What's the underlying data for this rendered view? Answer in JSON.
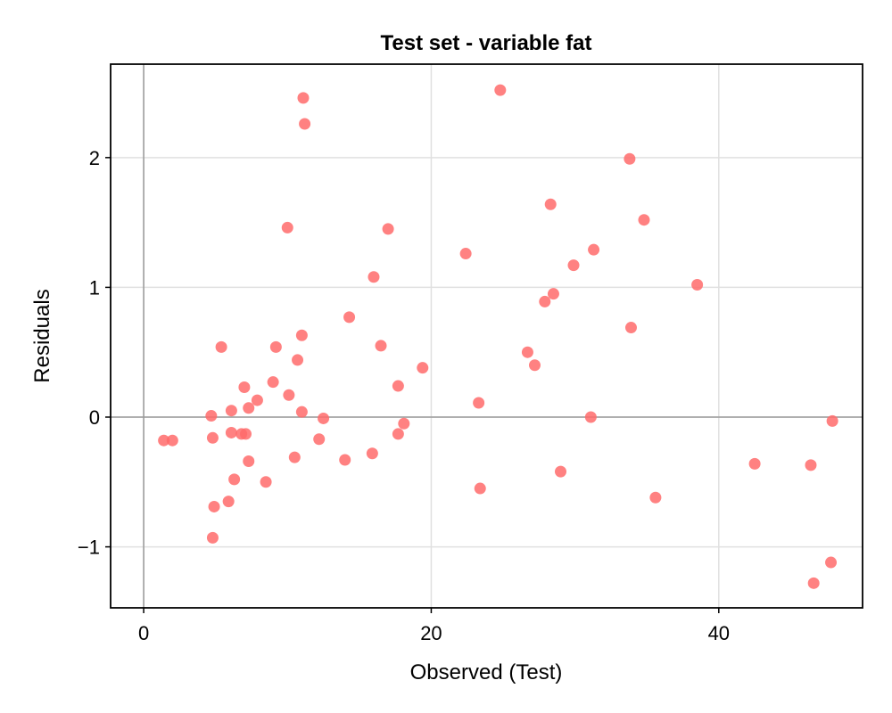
{
  "chart_data": {
    "type": "scatter",
    "title": "Test set - variable fat",
    "xlabel": "Observed (Test)",
    "ylabel": "Residuals",
    "xlim": [
      -2.3,
      50
    ],
    "ylim": [
      -1.47,
      2.72
    ],
    "xticks": [
      0,
      20,
      40
    ],
    "yticks": [
      -1,
      0,
      1,
      2
    ],
    "xtick_labels": [
      "0",
      "20",
      "40"
    ],
    "ytick_labels": [
      "−1",
      "0",
      "1",
      "2"
    ],
    "grid": true,
    "reference_lines": {
      "x": 0,
      "y": 0
    },
    "marker_color": "#ff6b6b",
    "points": [
      {
        "x": 1.4,
        "y": -0.18
      },
      {
        "x": 2.0,
        "y": -0.18
      },
      {
        "x": 4.7,
        "y": 0.01
      },
      {
        "x": 4.8,
        "y": -0.16
      },
      {
        "x": 4.9,
        "y": -0.69
      },
      {
        "x": 4.8,
        "y": -0.93
      },
      {
        "x": 5.4,
        "y": 0.54
      },
      {
        "x": 6.1,
        "y": 0.05
      },
      {
        "x": 6.1,
        "y": -0.12
      },
      {
        "x": 6.3,
        "y": -0.48
      },
      {
        "x": 5.9,
        "y": -0.65
      },
      {
        "x": 6.8,
        "y": -0.13
      },
      {
        "x": 7.0,
        "y": 0.23
      },
      {
        "x": 7.1,
        "y": -0.13
      },
      {
        "x": 7.3,
        "y": 0.07
      },
      {
        "x": 7.3,
        "y": -0.34
      },
      {
        "x": 7.9,
        "y": 0.13
      },
      {
        "x": 8.5,
        "y": -0.5
      },
      {
        "x": 9.0,
        "y": 0.27
      },
      {
        "x": 9.2,
        "y": 0.54
      },
      {
        "x": 10.0,
        "y": 1.46
      },
      {
        "x": 10.1,
        "y": 0.17
      },
      {
        "x": 10.5,
        "y": -0.31
      },
      {
        "x": 10.7,
        "y": 0.44
      },
      {
        "x": 11.0,
        "y": 0.63
      },
      {
        "x": 11.0,
        "y": 0.04
      },
      {
        "x": 11.1,
        "y": 2.46
      },
      {
        "x": 11.2,
        "y": 2.26
      },
      {
        "x": 12.2,
        "y": -0.17
      },
      {
        "x": 12.5,
        "y": -0.01
      },
      {
        "x": 14.0,
        "y": -0.33
      },
      {
        "x": 14.3,
        "y": 0.77
      },
      {
        "x": 15.9,
        "y": -0.28
      },
      {
        "x": 16.0,
        "y": 1.08
      },
      {
        "x": 16.5,
        "y": 0.55
      },
      {
        "x": 17.0,
        "y": 1.45
      },
      {
        "x": 17.7,
        "y": 0.24
      },
      {
        "x": 17.7,
        "y": -0.13
      },
      {
        "x": 18.1,
        "y": -0.05
      },
      {
        "x": 19.4,
        "y": 0.38
      },
      {
        "x": 22.4,
        "y": 1.26
      },
      {
        "x": 23.3,
        "y": 0.11
      },
      {
        "x": 23.4,
        "y": -0.55
      },
      {
        "x": 24.8,
        "y": 2.52
      },
      {
        "x": 26.7,
        "y": 0.5
      },
      {
        "x": 27.2,
        "y": 0.4
      },
      {
        "x": 27.9,
        "y": 0.89
      },
      {
        "x": 28.3,
        "y": 1.64
      },
      {
        "x": 28.5,
        "y": 0.95
      },
      {
        "x": 29.0,
        "y": -0.42
      },
      {
        "x": 29.9,
        "y": 1.17
      },
      {
        "x": 31.1,
        "y": 0.0
      },
      {
        "x": 31.3,
        "y": 1.29
      },
      {
        "x": 33.8,
        "y": 1.99
      },
      {
        "x": 33.9,
        "y": 0.69
      },
      {
        "x": 34.8,
        "y": 1.52
      },
      {
        "x": 35.6,
        "y": -0.62
      },
      {
        "x": 38.5,
        "y": 1.02
      },
      {
        "x": 42.5,
        "y": -0.36
      },
      {
        "x": 46.4,
        "y": -0.37
      },
      {
        "x": 46.6,
        "y": -1.28
      },
      {
        "x": 47.8,
        "y": -1.12
      },
      {
        "x": 47.9,
        "y": -0.03
      }
    ]
  }
}
